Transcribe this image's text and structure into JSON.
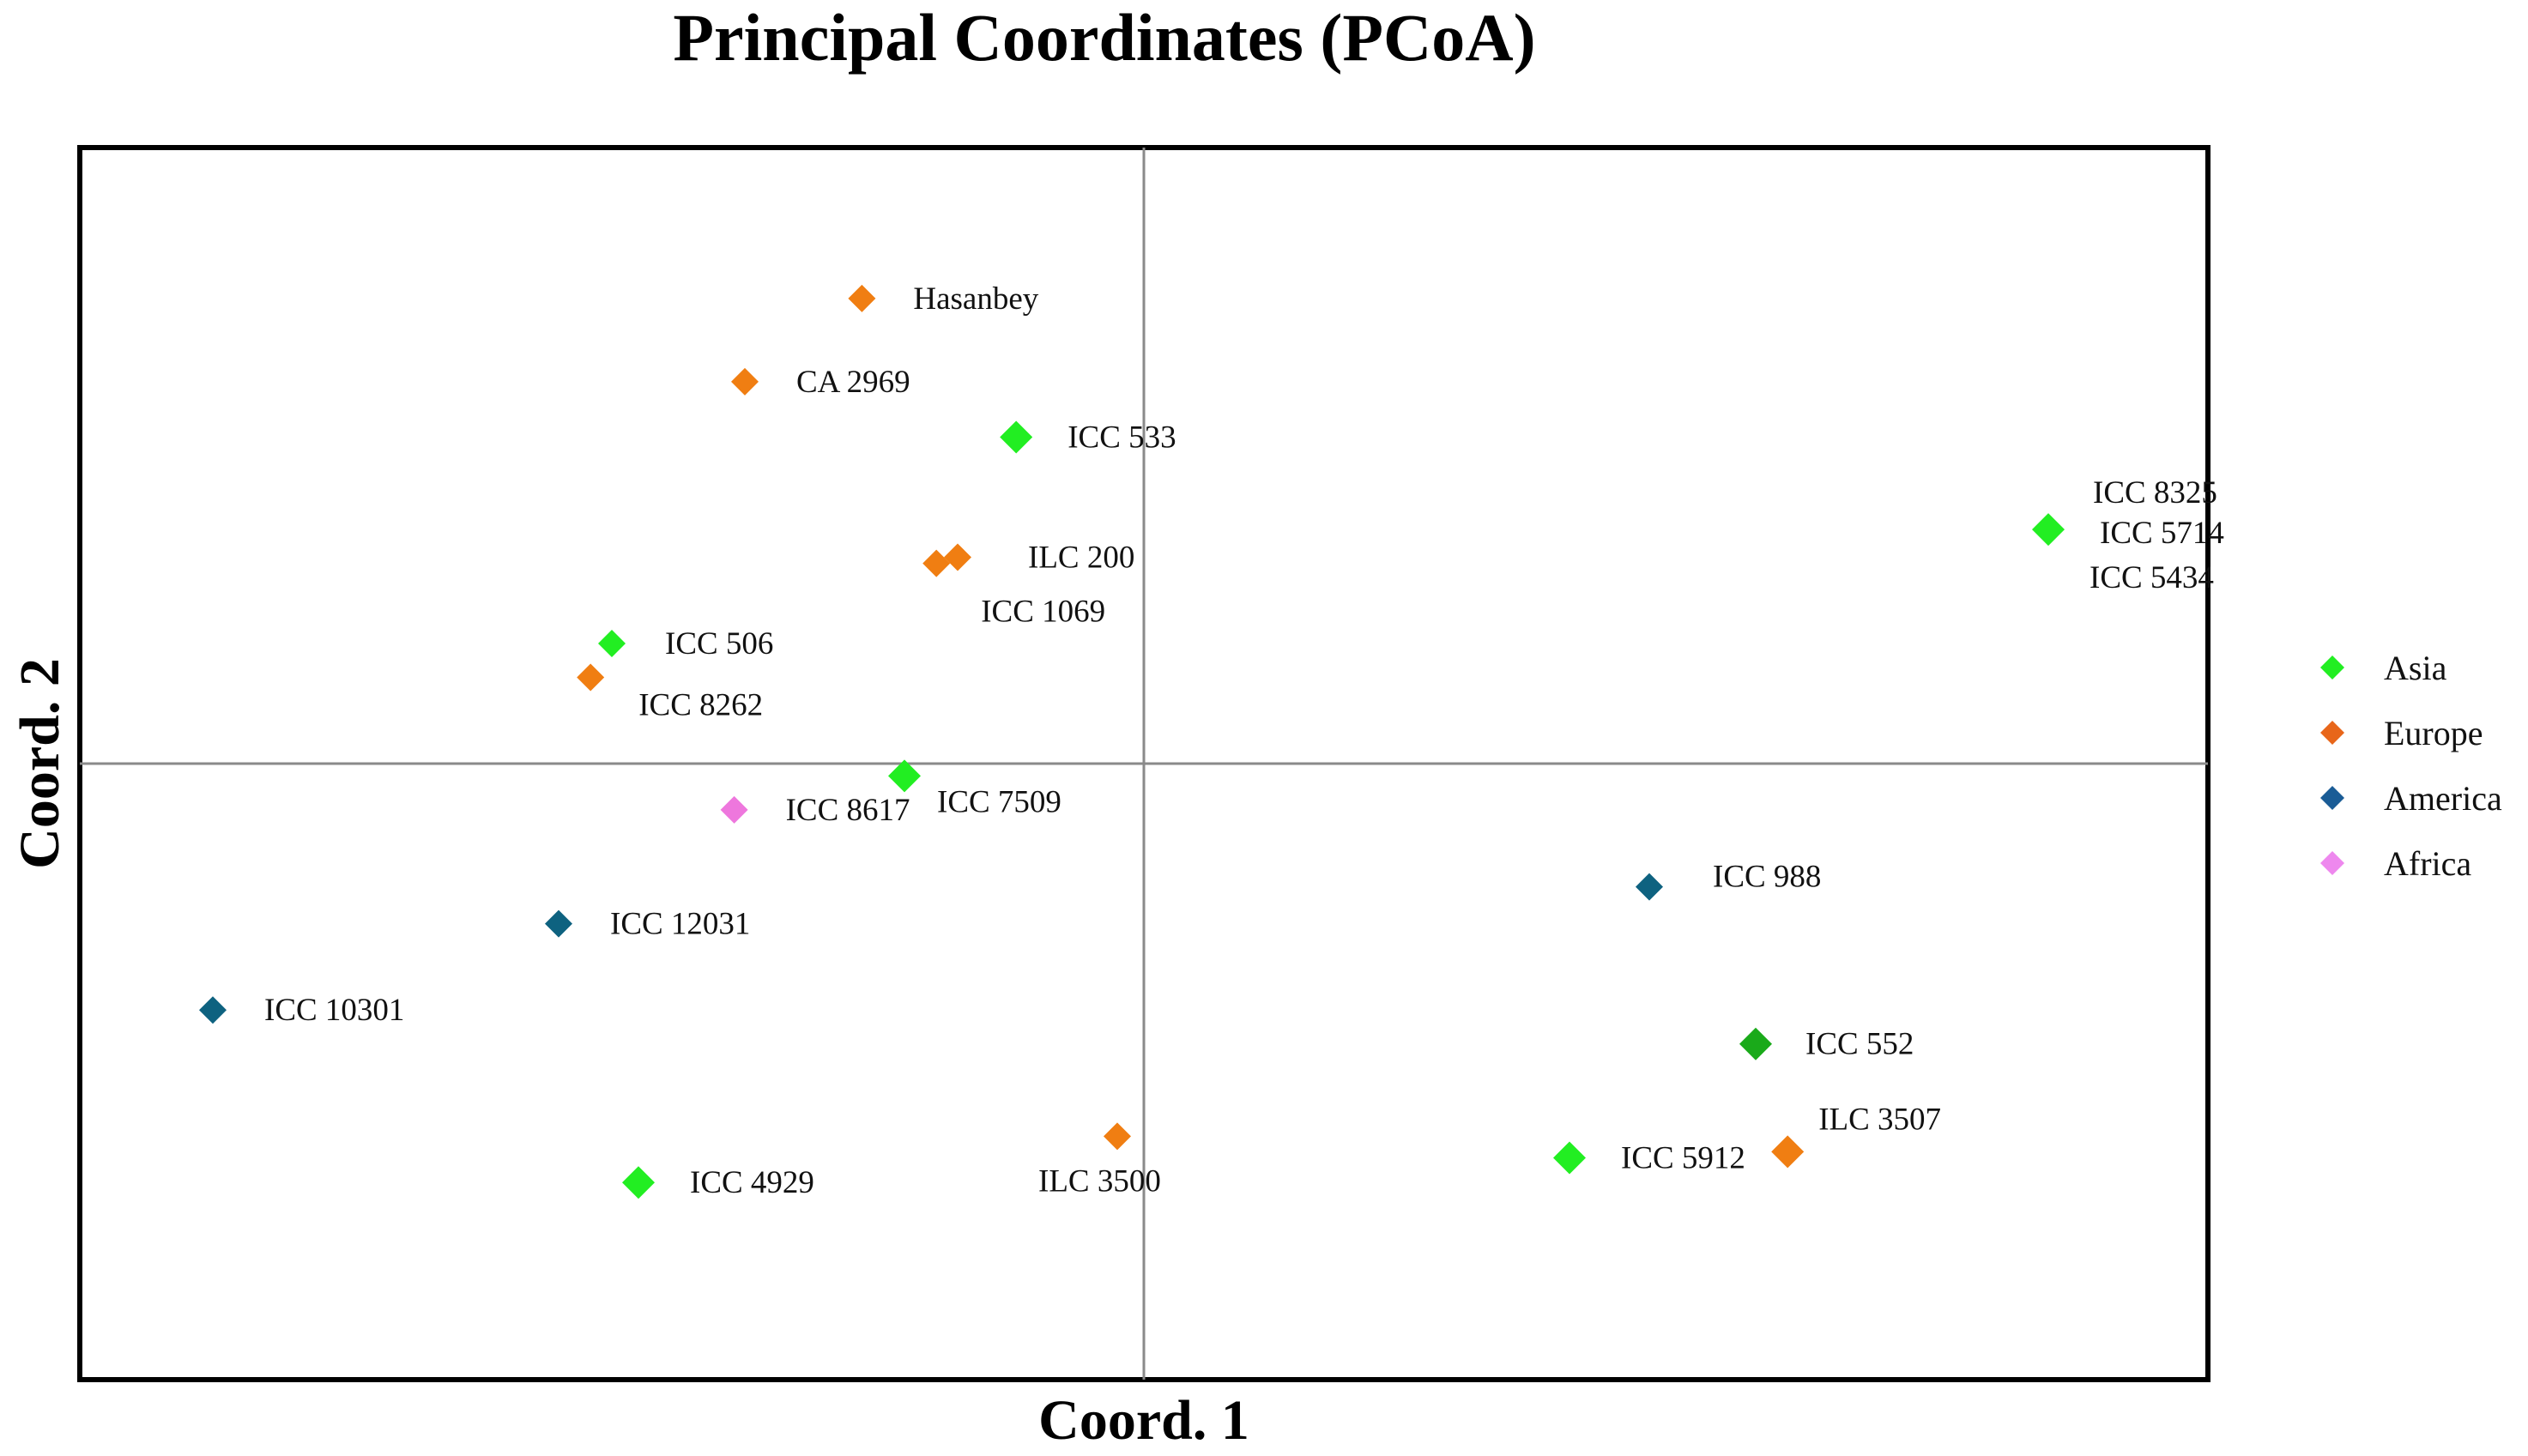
{
  "chart_data": {
    "type": "scatter",
    "title": "Principal Coordinates (PCoA)",
    "xlabel": "Coord. 1",
    "ylabel": "Coord. 2",
    "xlim": [
      -1.0,
      1.0
    ],
    "ylim": [
      -1.0,
      1.0
    ],
    "grid": false,
    "zero_lines": true,
    "legend_position": "right",
    "series": [
      {
        "name": "Asia",
        "color": "#22EE22",
        "points": [
          {
            "label": "ICC 533",
            "x": -0.12,
            "y": 0.53
          },
          {
            "label": "ICC 8325",
            "x": 0.85,
            "y": 0.38
          },
          {
            "label": "ICC 5714",
            "x": 0.85,
            "y": 0.38
          },
          {
            "label": "ICC 5434",
            "x": 0.85,
            "y": 0.38
          },
          {
            "label": "ICC 506",
            "x": -0.5,
            "y": 0.195
          },
          {
            "label": "ICC 7509",
            "x": -0.225,
            "y": -0.02
          },
          {
            "label": "ICC 552",
            "x": 0.575,
            "y": -0.455,
            "color": "#1AAA1A"
          },
          {
            "label": "ICC 5912",
            "x": 0.4,
            "y": -0.64
          },
          {
            "label": "ICC 4929",
            "x": -0.475,
            "y": -0.68
          }
        ]
      },
      {
        "name": "Europe",
        "color": "#F07E12",
        "points": [
          {
            "label": "Hasanbey",
            "x": -0.265,
            "y": 0.755
          },
          {
            "label": "CA 2969",
            "x": -0.375,
            "y": 0.62
          },
          {
            "label": "ILC 200",
            "x": -0.175,
            "y": 0.335
          },
          {
            "label": "ICC 1069",
            "x": -0.195,
            "y": 0.325
          },
          {
            "label": "ICC 8262",
            "x": -0.52,
            "y": 0.14
          },
          {
            "label": "ILC 3500",
            "x": -0.025,
            "y": -0.605
          },
          {
            "label": "ILC 3507",
            "x": 0.605,
            "y": -0.63
          }
        ]
      },
      {
        "name": "America",
        "color": "#0E6280",
        "points": [
          {
            "label": "ICC 988",
            "x": 0.475,
            "y": -0.2
          },
          {
            "label": "ICC 12031",
            "x": -0.55,
            "y": -0.26
          },
          {
            "label": "ICC 10301",
            "x": -0.875,
            "y": -0.4
          }
        ]
      },
      {
        "name": "Africa",
        "color": "#EE77DD",
        "points": [
          {
            "label": "ICC 8617",
            "x": -0.385,
            "y": -0.075
          }
        ]
      }
    ],
    "legend": [
      {
        "name": "Asia",
        "color": "#22EE22"
      },
      {
        "name": "Europe",
        "color": "#E8661A"
      },
      {
        "name": "America",
        "color": "#1A5C96"
      },
      {
        "name": "Africa",
        "color": "#EE88EE"
      }
    ]
  }
}
